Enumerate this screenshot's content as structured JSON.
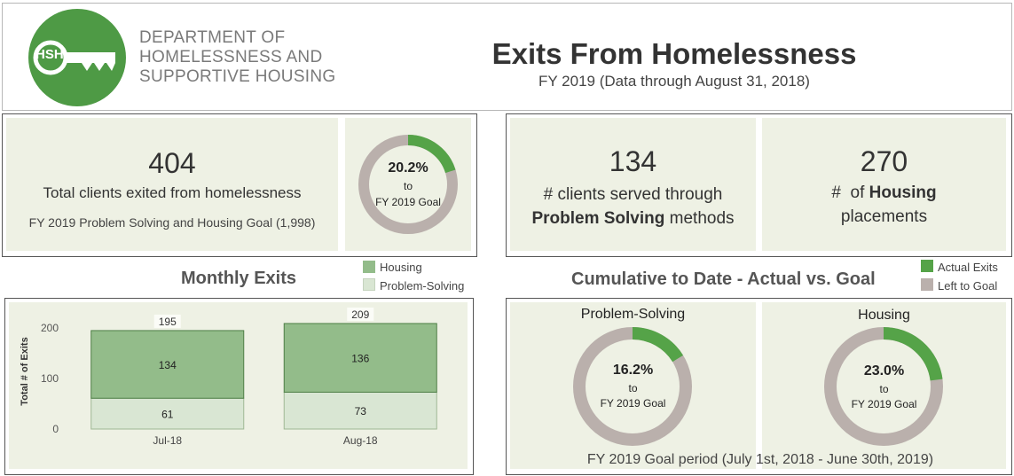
{
  "header": {
    "logo_text": "HSH",
    "org_line1": "DEPARTMENT OF",
    "org_line2": "HOMELESSNESS AND",
    "org_line3": "SUPPORTIVE HOUSING",
    "title": "Exits From Homelessness",
    "subtitle": "FY 2019 (Data through August 31, 2018)"
  },
  "total_card": {
    "value": "404",
    "label": "Total clients exited from homelessness",
    "goal_text": "FY 2019 Problem Solving and Housing Goal (1,998)"
  },
  "total_donut": {
    "percent_label": "20.2%",
    "to_label": "to",
    "goal_label": "FY 2019 Goal",
    "fraction": 0.202
  },
  "problem_solving_card": {
    "value": "134",
    "line1": "# clients served through",
    "bold": "Problem Solving",
    "line2_rest": " methods"
  },
  "housing_card": {
    "value": "270",
    "line1_prefix": "#  of ",
    "bold": "Housing",
    "line2": "placements"
  },
  "monthly": {
    "title": "Monthly Exits",
    "legend": [
      {
        "label": "Housing",
        "color": "#93bc8a"
      },
      {
        "label": "Problem-Solving",
        "color": "#d9e6d3"
      }
    ]
  },
  "cumulative": {
    "title": "Cumulative to Date - Actual vs. Goal",
    "legend": [
      {
        "label": "Actual Exits",
        "color": "#55a348"
      },
      {
        "label": "Left to Goal",
        "color": "#bab0ac"
      }
    ],
    "donuts": [
      {
        "title": "Problem-Solving",
        "percent_label": "16.2%",
        "to_label": "to",
        "goal_label": "FY 2019 Goal",
        "fraction": 0.162
      },
      {
        "title": "Housing",
        "percent_label": "23.0%",
        "to_label": "to",
        "goal_label": "FY 2019 Goal",
        "fraction": 0.23
      }
    ],
    "footer": "FY 2019 Goal period (July 1st, 2018 - June 30th, 2019)"
  },
  "chart_data": {
    "type": "bar",
    "stacked": true,
    "categories": [
      "Jul-18",
      "Aug-18"
    ],
    "series": [
      {
        "name": "Problem-Solving",
        "values": [
          61,
          73
        ],
        "color": "#d9e6d3"
      },
      {
        "name": "Housing",
        "values": [
          134,
          136
        ],
        "color": "#93bc8a"
      }
    ],
    "totals": [
      195,
      209
    ],
    "ylabel": "Total # of Exits",
    "yticks": [
      0,
      100,
      200
    ],
    "ylim": [
      0,
      230
    ]
  }
}
